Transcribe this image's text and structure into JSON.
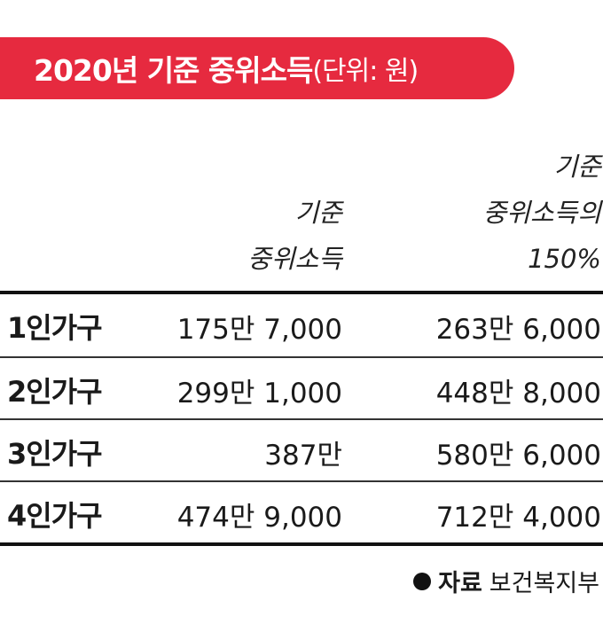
{
  "header": {
    "title": "2020년 기준 중위소득",
    "unit": "(단위: 원)"
  },
  "columns": {
    "col1": [
      "기준",
      "중위소득"
    ],
    "col2": [
      "기준",
      "중위소득의",
      "150%"
    ]
  },
  "rows": [
    {
      "label": "1인가구",
      "median": "175만 7,000",
      "median150": "263만 6,000"
    },
    {
      "label": "2인가구",
      "median": "299만 1,000",
      "median150": "448만 8,000"
    },
    {
      "label": "3인가구",
      "median": "387만",
      "median150": "580만 6,000"
    },
    {
      "label": "4인가구",
      "median": "474만 9,000",
      "median150": "712만 4,000"
    }
  ],
  "footer": {
    "source_label": "자료",
    "source_value": "보건복지부"
  },
  "colors": {
    "title_bg": "#e62a3f",
    "title_text": "#ffffff"
  },
  "chart_data": {
    "type": "table",
    "title": "2020년 기준 중위소득",
    "subtitle": "(단위: 원)",
    "columns": [
      "기준 중위소득",
      "기준 중위소득의 150%"
    ],
    "categories": [
      "1인가구",
      "2인가구",
      "3인가구",
      "4인가구"
    ],
    "series": [
      {
        "name": "기준 중위소득",
        "values": [
          1757000,
          2991000,
          3870000,
          4749000
        ]
      },
      {
        "name": "기준 중위소득의 150%",
        "values": [
          2636000,
          4488000,
          5806000,
          7124000
        ]
      }
    ],
    "source": "보건복지부"
  }
}
